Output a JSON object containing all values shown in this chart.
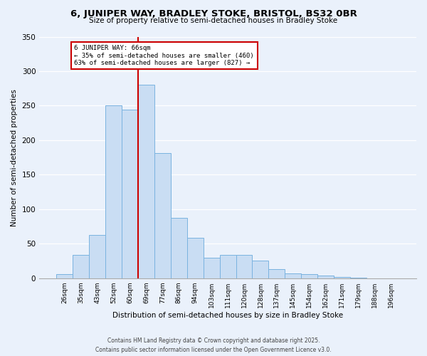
{
  "title": "6, JUNIPER WAY, BRADLEY STOKE, BRISTOL, BS32 0BR",
  "subtitle": "Size of property relative to semi-detached houses in Bradley Stoke",
  "xlabel": "Distribution of semi-detached houses by size in Bradley Stoke",
  "ylabel": "Number of semi-detached properties",
  "bar_labels": [
    "26sqm",
    "35sqm",
    "43sqm",
    "52sqm",
    "60sqm",
    "69sqm",
    "77sqm",
    "86sqm",
    "94sqm",
    "103sqm",
    "111sqm",
    "120sqm",
    "128sqm",
    "137sqm",
    "145sqm",
    "154sqm",
    "162sqm",
    "171sqm",
    "179sqm",
    "188sqm",
    "196sqm"
  ],
  "bar_values": [
    6,
    34,
    63,
    250,
    244,
    280,
    181,
    87,
    59,
    30,
    34,
    34,
    25,
    13,
    7,
    6,
    4,
    2,
    1,
    0,
    0
  ],
  "bar_color": "#c9ddf3",
  "bar_edge_color": "#7ab3e0",
  "vline_color": "#cc0000",
  "vline_pos": 4.5,
  "annotation_title": "6 JUNIPER WAY: 66sqm",
  "annotation_line1": "← 35% of semi-detached houses are smaller (460)",
  "annotation_line2": "63% of semi-detached houses are larger (827) →",
  "ylim": [
    0,
    350
  ],
  "yticks": [
    0,
    50,
    100,
    150,
    200,
    250,
    300,
    350
  ],
  "bg_color": "#eaf1fb",
  "grid_color": "#ffffff",
  "footer1": "Contains HM Land Registry data © Crown copyright and database right 2025.",
  "footer2": "Contains public sector information licensed under the Open Government Licence v3.0."
}
